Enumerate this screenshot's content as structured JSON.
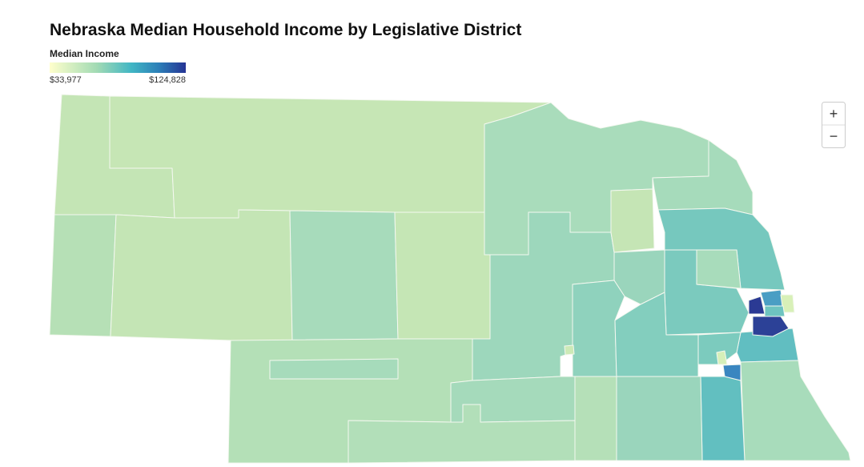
{
  "header": {
    "title": "Nebraska Median Household Income by Legislative District"
  },
  "legend": {
    "title": "Median Income",
    "min_label": "$33,977",
    "max_label": "$124,828"
  },
  "zoom": {
    "zoom_in": "+",
    "zoom_out": "−"
  }
}
